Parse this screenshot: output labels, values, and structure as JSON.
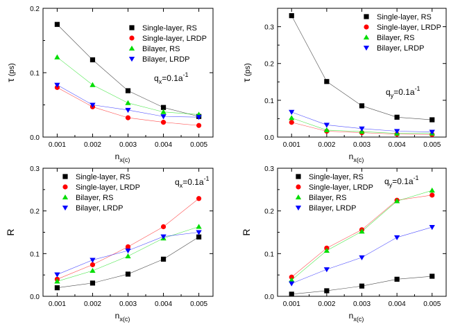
{
  "colors": {
    "Single-layer, RS": "#000000",
    "Single-layer, LRDP": "#ff0000",
    "Bilayer, RS": "#00dd00",
    "Bilayer, LRDP": "#0000ff"
  },
  "markers": {
    "Single-layer, RS": "square",
    "Single-layer, LRDP": "circle",
    "Bilayer, RS": "triangle-up",
    "Bilayer, LRDP": "triangle-down"
  },
  "chart_data": [
    {
      "type": "line",
      "ylabel_main": "τ",
      "ylabel_unit": " (ps)",
      "xlabel_main": "n",
      "xlabel_sub": "x(c)",
      "annotation": {
        "main": "q",
        "sub": "x",
        "rest": "=0.1a",
        "sup": "-1"
      },
      "x": [
        0.001,
        0.002,
        0.003,
        0.004,
        0.005
      ],
      "x_ticks": [
        "0.001",
        "0.002",
        "0.003",
        "0.004",
        "0.005"
      ],
      "ylim": [
        0,
        0.2
      ],
      "y_ticks": [
        "0.0",
        "0.1",
        "0.2"
      ],
      "legend_placement": "top-right",
      "series": [
        {
          "name": "Single-layer, RS",
          "values": [
            0.175,
            0.12,
            0.072,
            0.046,
            0.032
          ]
        },
        {
          "name": "Single-layer, LRDP",
          "values": [
            0.077,
            0.047,
            0.03,
            0.023,
            0.018
          ]
        },
        {
          "name": "Bilayer, RS",
          "values": [
            0.124,
            0.081,
            0.053,
            0.039,
            0.035
          ]
        },
        {
          "name": "Bilayer, LRDP",
          "values": [
            0.081,
            0.05,
            0.042,
            0.032,
            0.031
          ]
        }
      ]
    },
    {
      "type": "line",
      "ylabel_main": "τ",
      "ylabel_unit": " (ps)",
      "xlabel_main": "n",
      "xlabel_sub": "x(c)",
      "annotation": {
        "main": "q",
        "sub": "y",
        "rest": "=0.1a",
        "sup": "-1"
      },
      "x": [
        0.001,
        0.002,
        0.003,
        0.004,
        0.005
      ],
      "x_ticks": [
        "0.001",
        "0.002",
        "0.003",
        "0.004",
        "0.005"
      ],
      "ylim": [
        0,
        0.35
      ],
      "y_ticks": [
        "0.0",
        "0.1",
        "0.2",
        "0.3"
      ],
      "legend_placement": "top-right",
      "series": [
        {
          "name": "Single-layer, RS",
          "values": [
            0.33,
            0.151,
            0.085,
            0.054,
            0.047
          ]
        },
        {
          "name": "Single-layer, LRDP",
          "values": [
            0.04,
            0.016,
            0.012,
            0.008,
            0.007
          ]
        },
        {
          "name": "Bilayer, RS",
          "values": [
            0.052,
            0.019,
            0.015,
            0.01,
            0.01
          ]
        },
        {
          "name": "Bilayer, LRDP",
          "values": [
            0.068,
            0.033,
            0.023,
            0.016,
            0.014
          ]
        }
      ]
    },
    {
      "type": "line",
      "ylabel_main": "R",
      "ylabel_unit": "",
      "xlabel_main": "n",
      "xlabel_sub": "x(c)",
      "annotation": {
        "main": "q",
        "sub": "x",
        "rest": "=0.1a",
        "sup": "-1"
      },
      "x": [
        0.001,
        0.002,
        0.003,
        0.004,
        0.005
      ],
      "x_ticks": [
        "0.001",
        "0.002",
        "0.003",
        "0.004",
        "0.005"
      ],
      "ylim": [
        0,
        0.3
      ],
      "y_ticks": [
        "0.0",
        "0.1",
        "0.2",
        "0.3"
      ],
      "legend_placement": "top-left",
      "series": [
        {
          "name": "Single-layer, RS",
          "values": [
            0.02,
            0.031,
            0.052,
            0.087,
            0.139
          ]
        },
        {
          "name": "Single-layer, LRDP",
          "values": [
            0.04,
            0.074,
            0.116,
            0.163,
            0.229
          ]
        },
        {
          "name": "Bilayer, RS",
          "values": [
            0.035,
            0.06,
            0.094,
            0.136,
            0.163
          ]
        },
        {
          "name": "Bilayer, LRDP",
          "values": [
            0.051,
            0.085,
            0.107,
            0.14,
            0.15
          ]
        }
      ]
    },
    {
      "type": "line",
      "ylabel_main": "R",
      "ylabel_unit": "",
      "xlabel_main": "n",
      "xlabel_sub": "x(c)",
      "annotation": {
        "main": "q",
        "sub": "y",
        "rest": "=0.1a",
        "sup": "-1"
      },
      "x": [
        0.001,
        0.002,
        0.003,
        0.004,
        0.005
      ],
      "x_ticks": [
        "0.001",
        "0.002",
        "0.003",
        "0.004",
        "0.005"
      ],
      "ylim": [
        0,
        0.3
      ],
      "y_ticks": [
        "0.0",
        "0.1",
        "0.2",
        "0.3"
      ],
      "legend_placement": "top-left",
      "series": [
        {
          "name": "Single-layer, RS",
          "values": [
            0.005,
            0.013,
            0.024,
            0.04,
            0.047
          ]
        },
        {
          "name": "Single-layer, LRDP",
          "values": [
            0.045,
            0.113,
            0.156,
            0.225,
            0.237
          ]
        },
        {
          "name": "Bilayer, RS",
          "values": [
            0.038,
            0.107,
            0.152,
            0.223,
            0.248
          ]
        },
        {
          "name": "Bilayer, LRDP",
          "values": [
            0.03,
            0.063,
            0.091,
            0.138,
            0.162
          ]
        }
      ]
    }
  ]
}
